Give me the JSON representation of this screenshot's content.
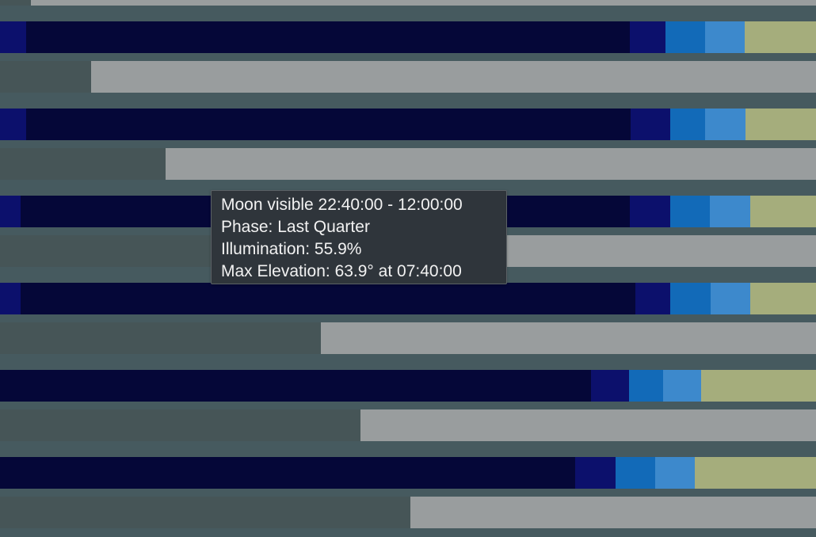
{
  "colors": {
    "background": "#465a5f",
    "night_deep": "#050738",
    "night_edge": "#0c106c",
    "twilight_nautical": "#126ab8",
    "twilight_civil": "#3d89cc",
    "daylight": "#a5ad7c",
    "moon_absent": "#465557",
    "moon_visible": "#999d9e",
    "tooltip_bg": "#2f353b",
    "tooltip_text": "#f2f2f2"
  },
  "tooltip": {
    "visible_line": "Moon visible 22:40:00 - 12:00:00",
    "phase_line": "Phase: Last Quarter",
    "illumination_line": "Illumination: 55.9%",
    "elevation_line": "Max Elevation: 63.9° at 07:40:00"
  }
}
